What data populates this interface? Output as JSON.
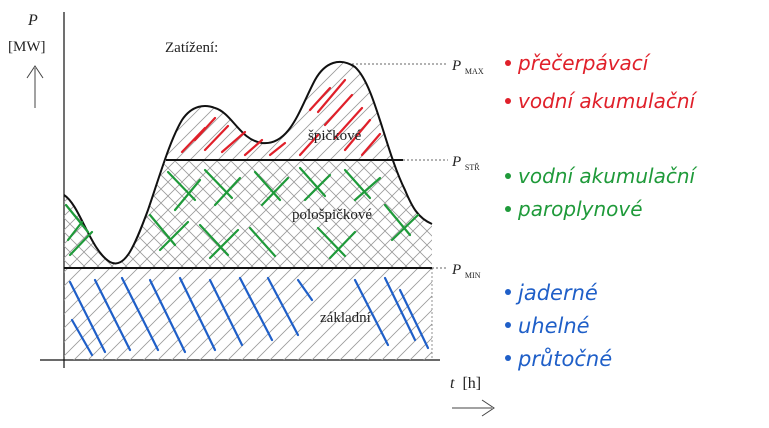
{
  "axes": {
    "y_label": "P",
    "y_unit": "[MW]",
    "x_label": "t",
    "x_unit": "[h]"
  },
  "title": "Zatížení:",
  "levels": {
    "max": {
      "label": "P",
      "sub": "MAX"
    },
    "str": {
      "label": "P",
      "sub": "STŘ"
    },
    "min": {
      "label": "P",
      "sub": "MIN"
    }
  },
  "regions": {
    "peak": "špičkové",
    "semi": "pološpičkové",
    "base": "základní"
  },
  "notes": {
    "red": [
      "přečerpávací",
      "vodní akumulační"
    ],
    "green": [
      "vodní akumulační",
      "paroplynové"
    ],
    "blue": [
      "jaderné",
      "uhelné",
      "průtočné"
    ]
  },
  "colors": {
    "red": "#e0202a",
    "green": "#1f9a3a",
    "blue": "#1f5fc8",
    "line": "#111111",
    "hatch": "#9a9a9a"
  }
}
